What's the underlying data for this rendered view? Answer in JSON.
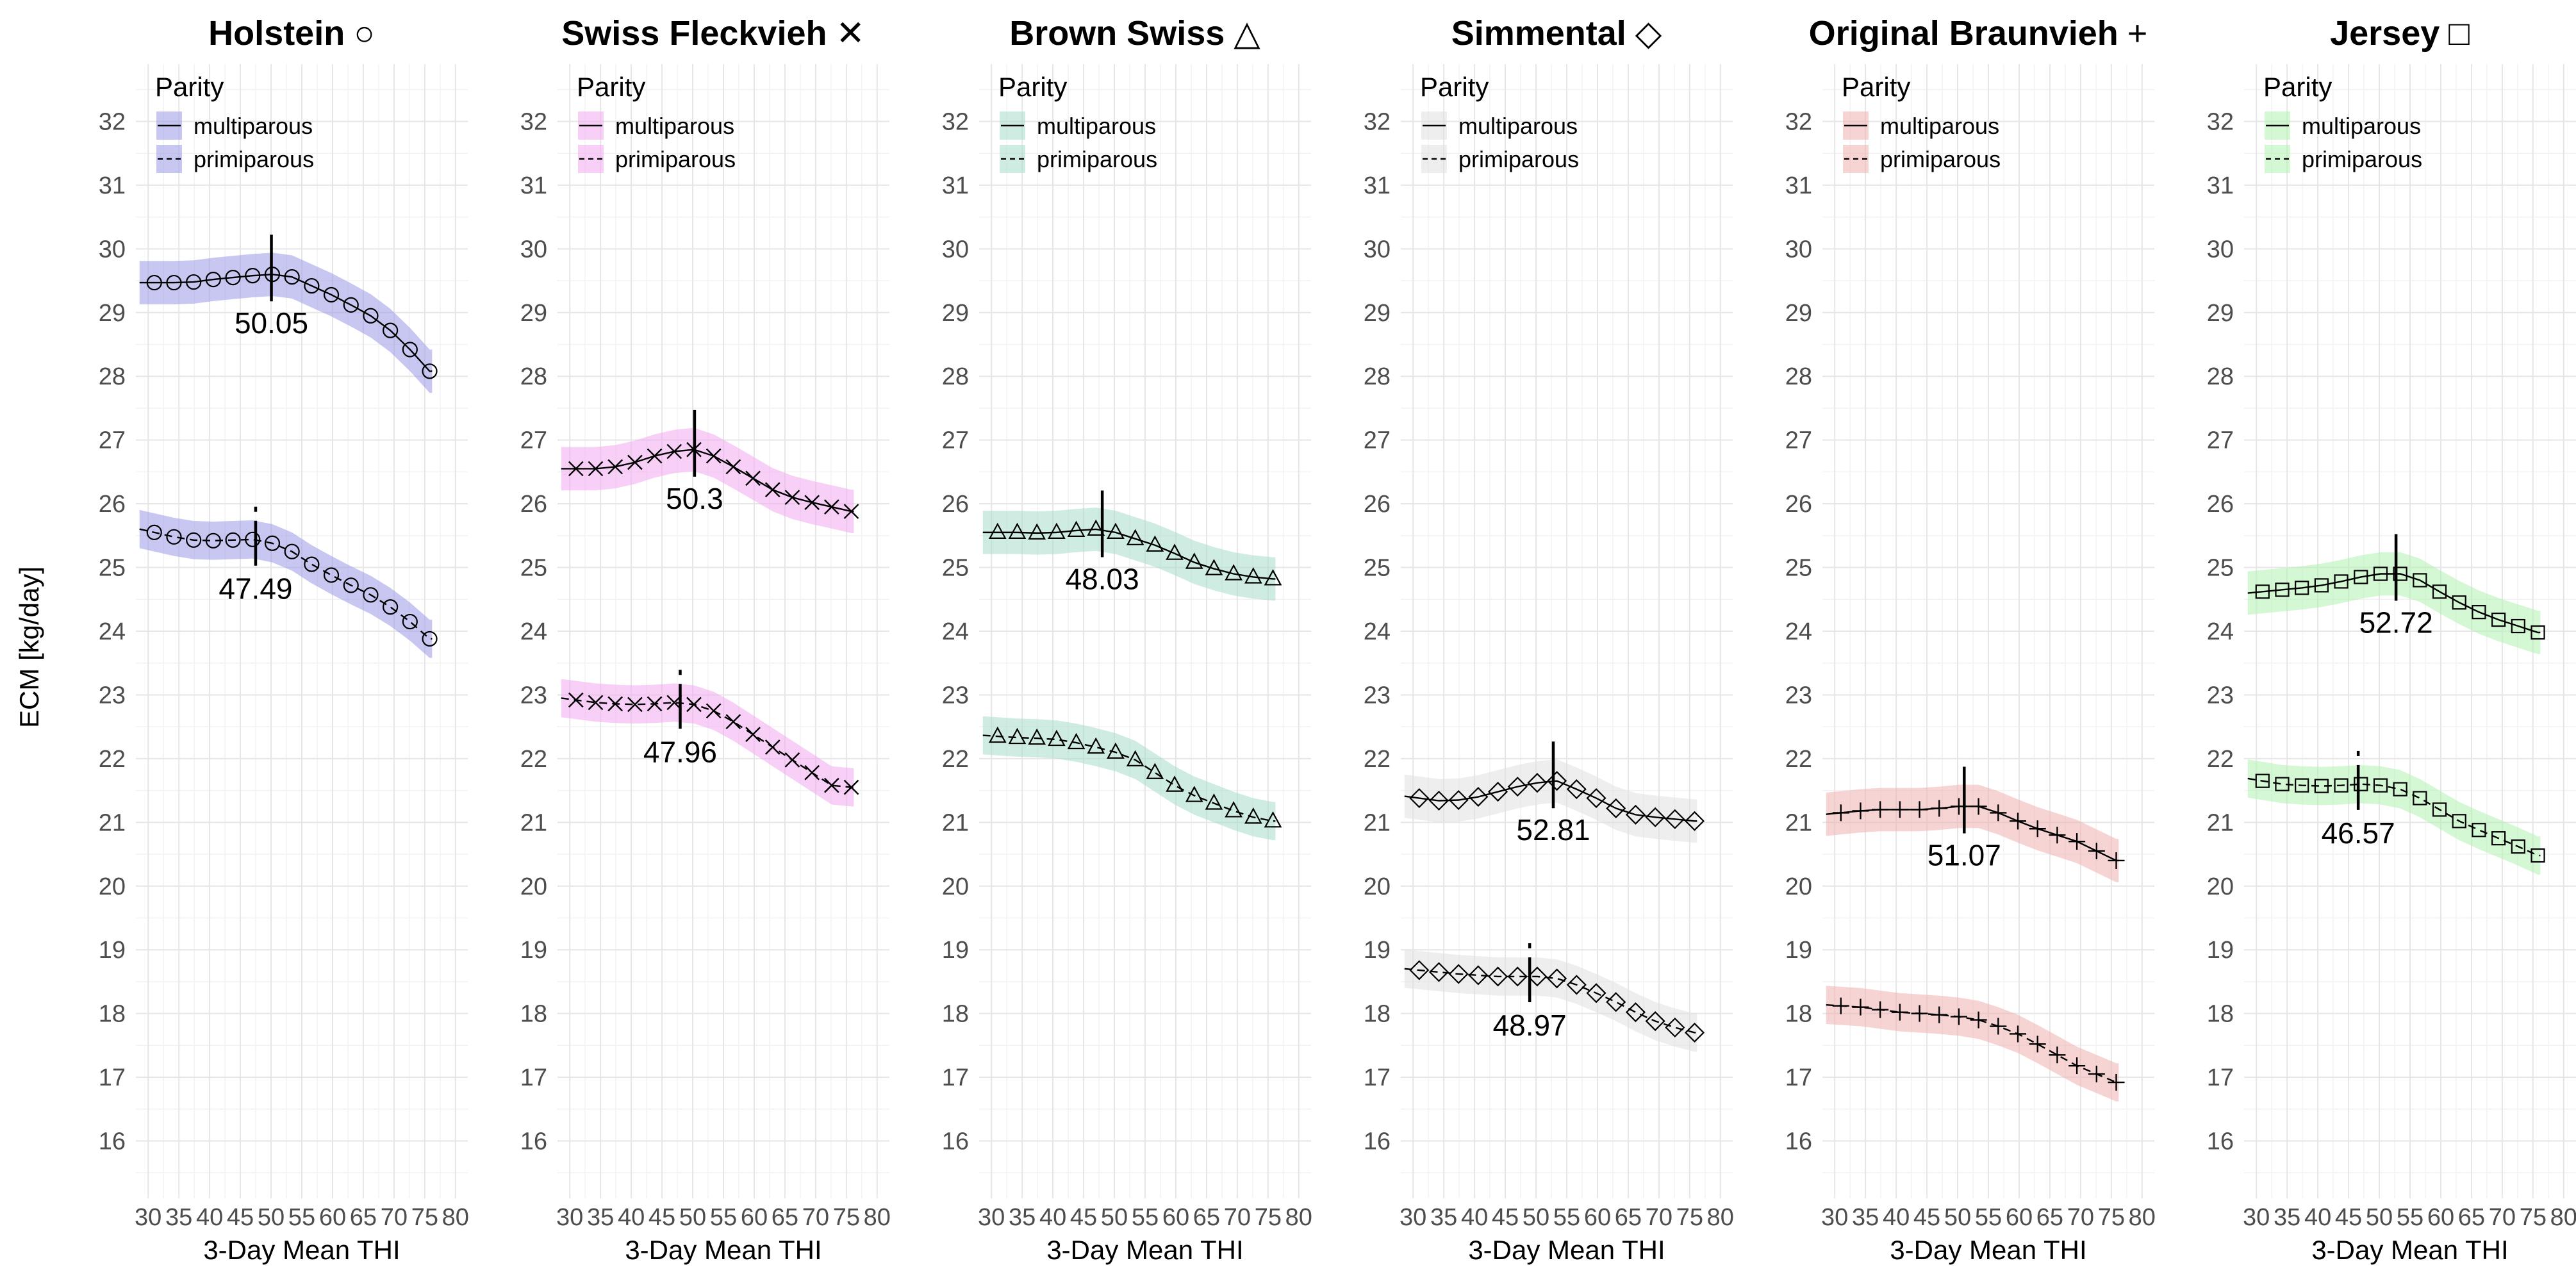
{
  "chart_data": {
    "type": "line",
    "ylabel": "ECM [kg/day]",
    "xlabel": "3-Day Mean THI",
    "xlim": [
      28,
      82
    ],
    "ylim": [
      15.1,
      32.9
    ],
    "xticks": [
      30,
      35,
      40,
      45,
      50,
      55,
      60,
      65,
      70,
      75,
      80
    ],
    "yticks": [
      16,
      17,
      18,
      19,
      20,
      21,
      22,
      23,
      24,
      25,
      26,
      27,
      28,
      29,
      30,
      31,
      32
    ],
    "x": [
      31,
      34.2,
      37.4,
      40.6,
      43.8,
      47,
      50.2,
      53.4,
      56.6,
      59.8,
      63,
      66.2,
      69.4,
      72.6,
      75.8
    ],
    "legend": {
      "title": "Parity",
      "entries": [
        "multiparous",
        "primiparous"
      ],
      "placement": "top-left"
    },
    "panels": [
      {
        "breed": "Holstein",
        "symbol": "○",
        "marker": "circle",
        "band_color": "#9999e6",
        "series": [
          {
            "name": "multiparous",
            "values": [
              29.47,
              29.47,
              29.48,
              29.52,
              29.55,
              29.58,
              29.6,
              29.56,
              29.42,
              29.28,
              29.12,
              28.95,
              28.72,
              28.42,
              28.08
            ],
            "breakpoint": 50.05,
            "bp_label": "50.05"
          },
          {
            "name": "primiparous",
            "values": [
              25.55,
              25.48,
              25.43,
              25.42,
              25.43,
              25.44,
              25.38,
              25.25,
              25.05,
              24.88,
              24.72,
              24.57,
              24.38,
              24.15,
              23.88
            ],
            "breakpoint": 47.49,
            "bp_label": "47.49"
          }
        ]
      },
      {
        "breed": "Swiss Fleckvieh",
        "symbol": "✕",
        "marker": "x",
        "band_color": "#f0a8f0",
        "series": [
          {
            "name": "multiparous",
            "values": [
              26.55,
              26.55,
              26.58,
              26.65,
              26.75,
              26.82,
              26.85,
              26.75,
              26.58,
              26.4,
              26.22,
              26.1,
              26.02,
              25.95,
              25.88
            ],
            "breakpoint": 50.3,
            "bp_label": "50.3"
          },
          {
            "name": "primiparous",
            "values": [
              22.92,
              22.88,
              22.86,
              22.85,
              22.86,
              22.88,
              22.85,
              22.75,
              22.58,
              22.38,
              22.18,
              21.98,
              21.78,
              21.58,
              21.55
            ],
            "breakpoint": 47.96,
            "bp_label": "47.96"
          }
        ]
      },
      {
        "breed": "Brown Swiss",
        "symbol": "△",
        "marker": "triangle",
        "band_color": "#a8dccc",
        "series": [
          {
            "name": "multiparous",
            "values": [
              25.55,
              25.55,
              25.54,
              25.55,
              25.58,
              25.6,
              25.55,
              25.45,
              25.35,
              25.22,
              25.08,
              24.98,
              24.9,
              24.85,
              24.82
            ],
            "breakpoint": 48.03,
            "bp_label": "48.03"
          },
          {
            "name": "primiparous",
            "values": [
              22.35,
              22.33,
              22.32,
              22.3,
              22.25,
              22.18,
              22.1,
              21.98,
              21.78,
              21.58,
              21.42,
              21.3,
              21.18,
              21.08,
              21.02
            ],
            "breakpoint": null,
            "bp_label": ""
          }
        ]
      },
      {
        "breed": "Simmental",
        "symbol": "◇",
        "marker": "diamond",
        "band_color": "#e0e0e0",
        "series": [
          {
            "name": "multiparous",
            "values": [
              21.38,
              21.34,
              21.35,
              21.4,
              21.48,
              21.56,
              21.62,
              21.65,
              21.52,
              21.38,
              21.22,
              21.12,
              21.08,
              21.05,
              21.02
            ],
            "breakpoint": 52.81,
            "bp_label": "52.81"
          },
          {
            "name": "primiparous",
            "values": [
              18.68,
              18.65,
              18.62,
              18.6,
              18.58,
              18.58,
              18.58,
              18.55,
              18.45,
              18.32,
              18.18,
              18.02,
              17.88,
              17.78,
              17.7
            ],
            "breakpoint": 48.97,
            "bp_label": "48.97"
          }
        ]
      },
      {
        "breed": "Original Braunvieh",
        "symbol": "+",
        "marker": "plus",
        "band_color": "#f0b0b0",
        "series": [
          {
            "name": "multiparous",
            "values": [
              21.15,
              21.18,
              21.2,
              21.2,
              21.2,
              21.22,
              21.25,
              21.25,
              21.15,
              21.02,
              20.9,
              20.8,
              20.7,
              20.55,
              20.4
            ],
            "breakpoint": 51.07,
            "bp_label": "51.07"
          },
          {
            "name": "primiparous",
            "values": [
              18.12,
              18.1,
              18.06,
              18.02,
              18.0,
              17.98,
              17.95,
              17.9,
              17.8,
              17.68,
              17.52,
              17.35,
              17.18,
              17.05,
              16.92
            ],
            "breakpoint": null,
            "bp_label": ""
          }
        ]
      },
      {
        "breed": "Jersey",
        "symbol": "□",
        "marker": "square",
        "band_color": "#b0f0b0",
        "series": [
          {
            "name": "multiparous",
            "values": [
              24.62,
              24.65,
              24.68,
              24.72,
              24.78,
              24.85,
              24.9,
              24.9,
              24.8,
              24.62,
              24.45,
              24.3,
              24.18,
              24.08,
              23.98
            ],
            "breakpoint": 52.72,
            "bp_label": "52.72"
          },
          {
            "name": "primiparous",
            "values": [
              21.65,
              21.6,
              21.58,
              21.57,
              21.58,
              21.6,
              21.58,
              21.52,
              21.38,
              21.2,
              21.02,
              20.88,
              20.75,
              20.62,
              20.48
            ],
            "breakpoint": 46.57,
            "bp_label": "46.57"
          }
        ]
      }
    ]
  }
}
